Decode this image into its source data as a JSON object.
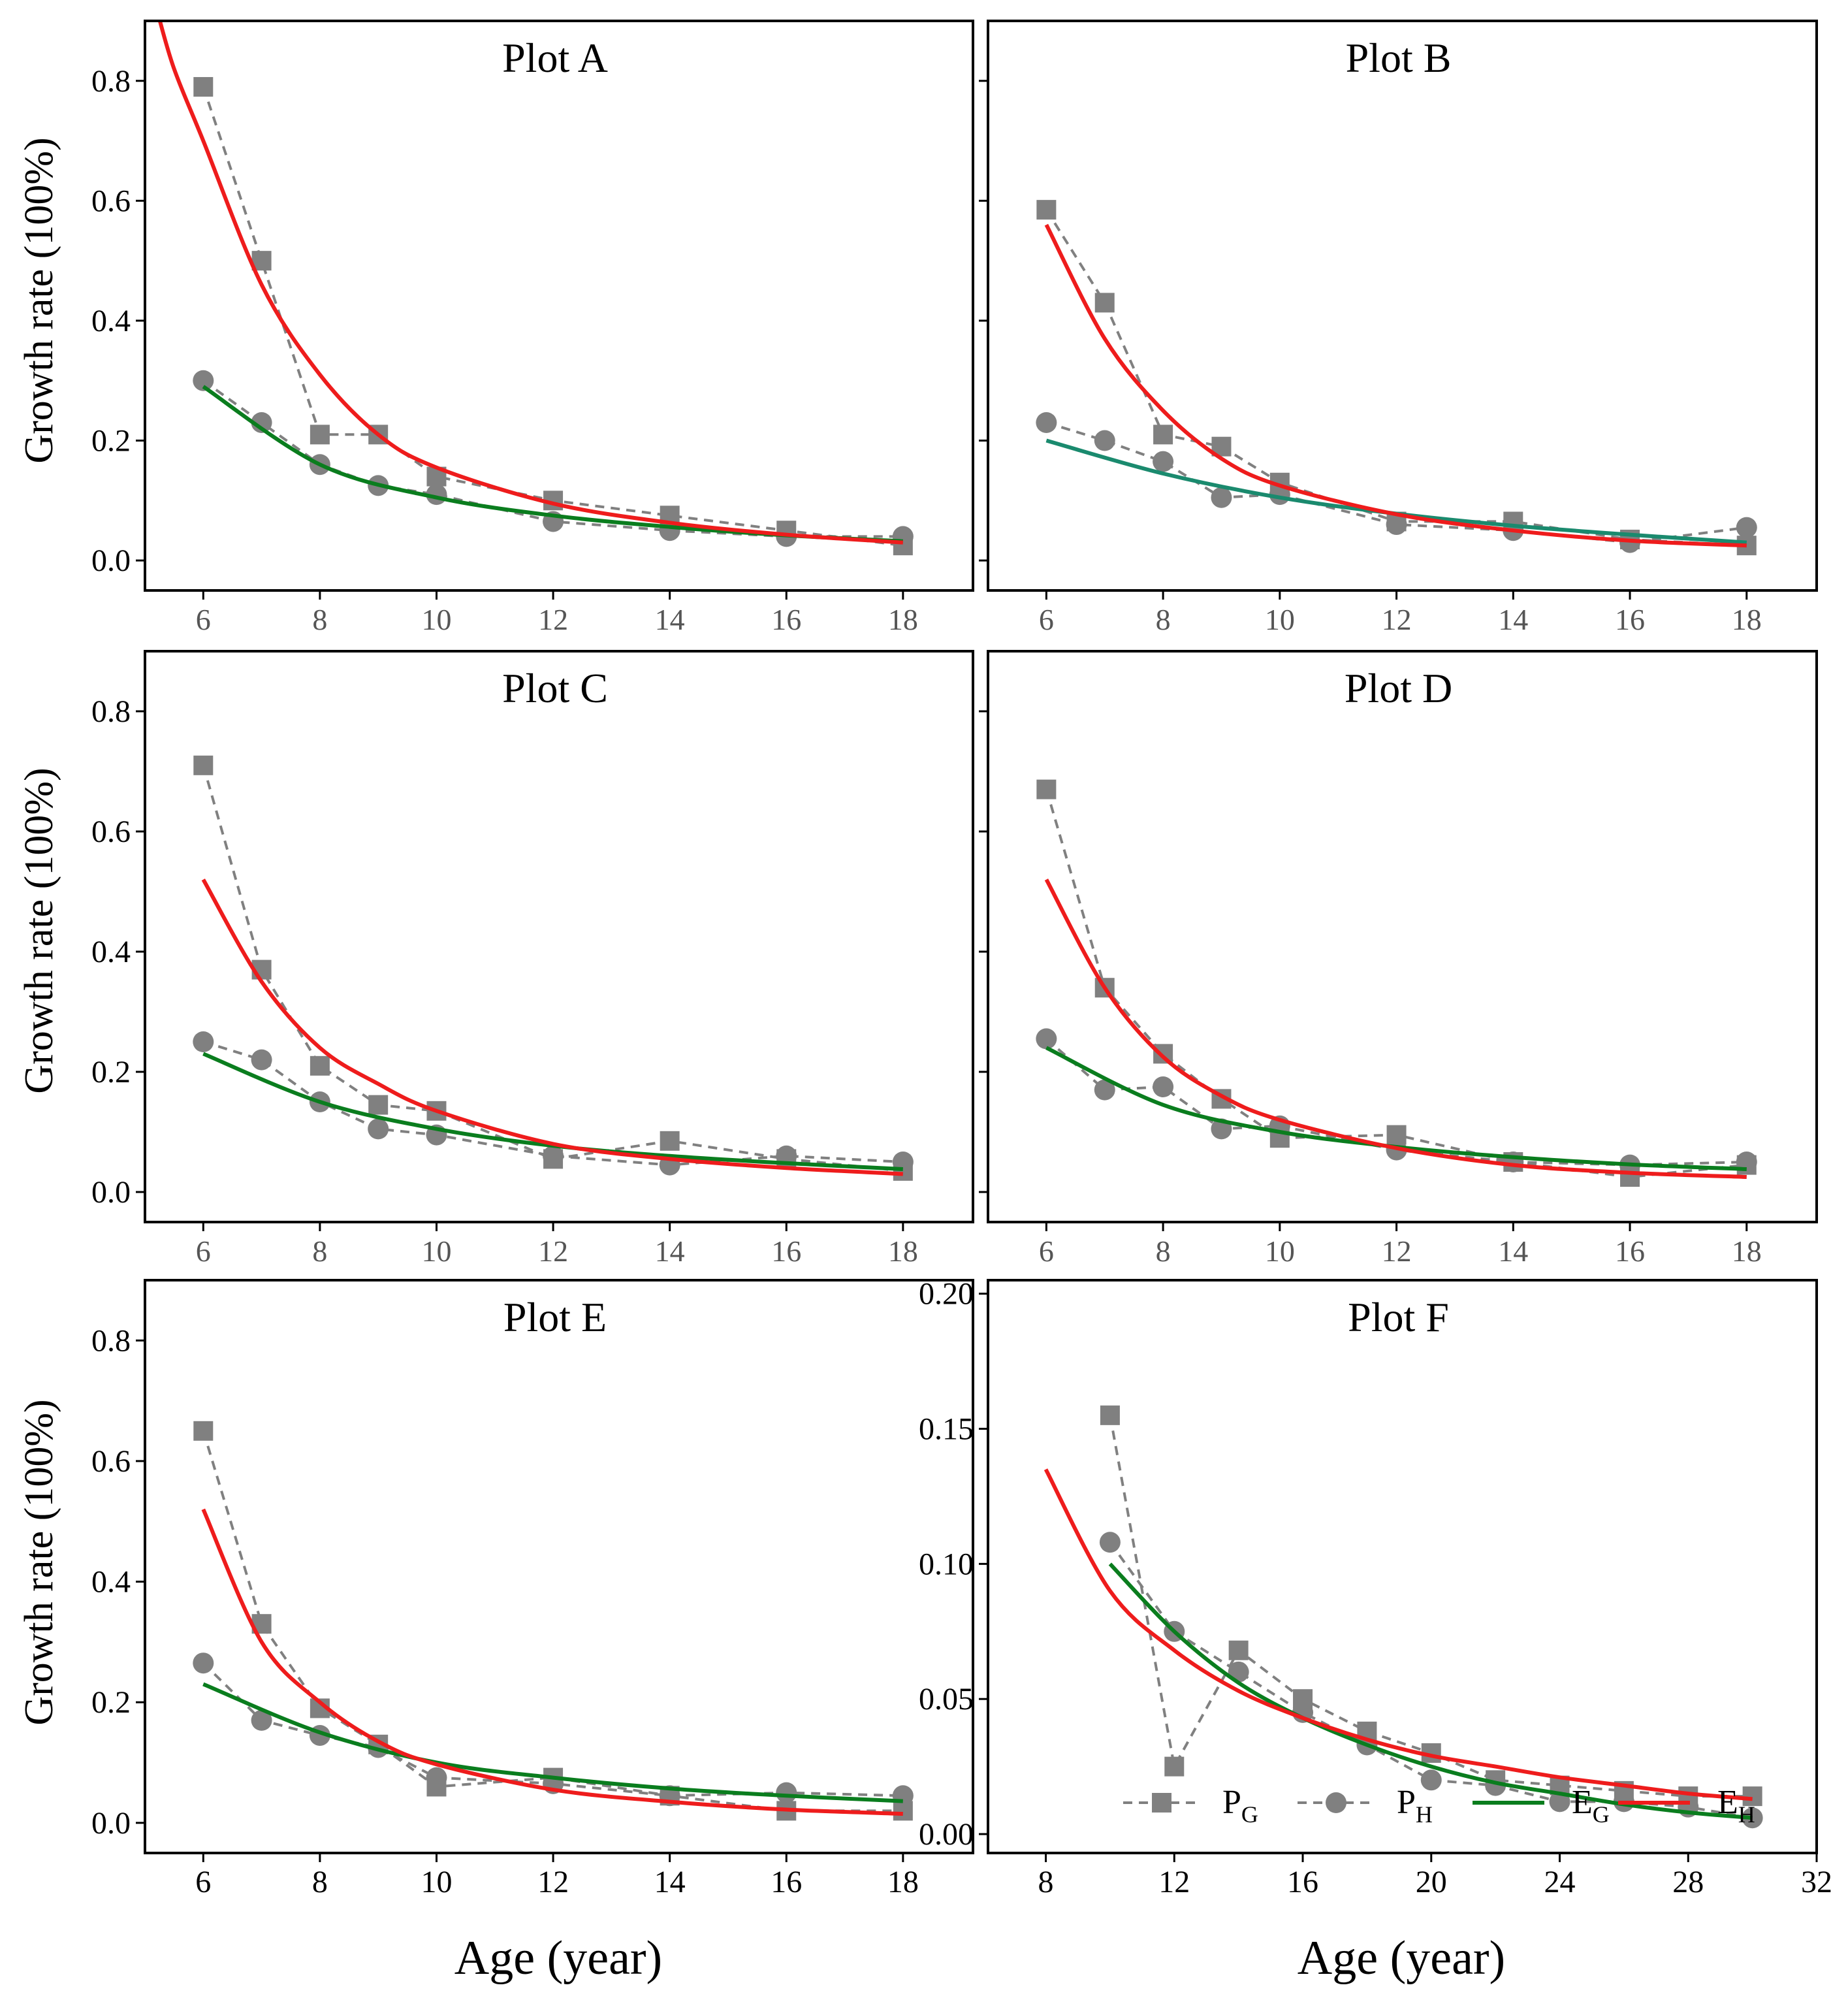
{
  "figure": {
    "ylabel": "Growth rate (100%)",
    "xlabel": "Age (year)",
    "legend": {
      "position": "bottom-right of Plot F",
      "items": [
        {
          "key": "PG",
          "base": "P",
          "sub": "G",
          "style": "gray dashed, square markers"
        },
        {
          "key": "PH",
          "base": "P",
          "sub": "H",
          "style": "gray dashed, circle markers"
        },
        {
          "key": "EG",
          "base": "E",
          "sub": "G",
          "style": "green solid"
        },
        {
          "key": "EH",
          "base": "E",
          "sub": "H",
          "style": "red solid"
        }
      ]
    },
    "colors": {
      "PG": "#808080",
      "PH": "#808080",
      "EG": "#0a7d1e",
      "EH": "#ee1c1c",
      "EG_plotB": "#1a8a6e"
    }
  },
  "chart_data": [
    {
      "type": "line",
      "title": "Plot A",
      "xlim": [
        5,
        19.2
      ],
      "ylim": [
        -0.05,
        0.9
      ],
      "xticks": [
        6,
        8,
        10,
        12,
        14,
        16,
        18
      ],
      "xtick_labels": [
        "6",
        "8",
        "10",
        "12",
        "14",
        "16",
        "18"
      ],
      "yticks": [
        0,
        0.2,
        0.4,
        0.6,
        0.8
      ],
      "ytick_labels": [
        "0.0",
        "0.2",
        "0.4",
        "0.6",
        "0.8"
      ],
      "series": [
        {
          "name": "PG",
          "x": [
            6,
            7,
            8,
            9,
            10,
            12,
            14,
            16,
            18
          ],
          "values": [
            0.79,
            0.5,
            0.21,
            0.21,
            0.14,
            0.1,
            0.075,
            0.05,
            0.025
          ]
        },
        {
          "name": "PH",
          "x": [
            6,
            7,
            8,
            9,
            10,
            12,
            14,
            16,
            18
          ],
          "values": [
            0.3,
            0.23,
            0.16,
            0.125,
            0.11,
            0.065,
            0.05,
            0.04,
            0.04
          ]
        },
        {
          "name": "EG",
          "x": [
            6,
            8,
            10,
            12,
            14,
            16,
            18
          ],
          "values": [
            0.29,
            0.16,
            0.105,
            0.075,
            0.056,
            0.042,
            0.032
          ]
        },
        {
          "name": "EH",
          "x": [
            5.2,
            5.5,
            6,
            7,
            8,
            9,
            10,
            12,
            14,
            16,
            18
          ],
          "values": [
            0.92,
            0.82,
            0.7,
            0.46,
            0.31,
            0.21,
            0.155,
            0.095,
            0.063,
            0.043,
            0.03
          ]
        }
      ]
    },
    {
      "type": "line",
      "title": "Plot B",
      "xlim": [
        5,
        19.2
      ],
      "ylim": [
        -0.05,
        0.9
      ],
      "xticks": [
        6,
        8,
        10,
        12,
        14,
        16,
        18
      ],
      "xtick_labels": [
        "6",
        "8",
        "10",
        "12",
        "14",
        "16",
        "18"
      ],
      "yticks": [
        0,
        0.2,
        0.4,
        0.6,
        0.8
      ],
      "ytick_labels": [
        "",
        "",
        "",
        "",
        ""
      ],
      "series": [
        {
          "name": "PG",
          "x": [
            6,
            7,
            8,
            9,
            10,
            12,
            14,
            16,
            18
          ],
          "values": [
            0.585,
            0.43,
            0.21,
            0.19,
            0.13,
            0.065,
            0.065,
            0.035,
            0.025
          ]
        },
        {
          "name": "PH",
          "x": [
            6,
            7,
            8,
            9,
            10,
            12,
            14,
            16,
            18
          ],
          "values": [
            0.23,
            0.2,
            0.165,
            0.105,
            0.11,
            0.06,
            0.05,
            0.03,
            0.055
          ]
        },
        {
          "name": "EG",
          "x": [
            6,
            8,
            10,
            12,
            14,
            16,
            18
          ],
          "values": [
            0.2,
            0.145,
            0.105,
            0.078,
            0.058,
            0.043,
            0.03
          ]
        },
        {
          "name": "EH",
          "x": [
            6,
            7,
            8,
            9,
            10,
            12,
            14,
            16,
            18
          ],
          "values": [
            0.56,
            0.37,
            0.25,
            0.17,
            0.125,
            0.077,
            0.05,
            0.033,
            0.025
          ]
        }
      ]
    },
    {
      "type": "line",
      "title": "Plot C",
      "xlim": [
        5,
        19.2
      ],
      "ylim": [
        -0.05,
        0.9
      ],
      "xticks": [
        6,
        8,
        10,
        12,
        14,
        16,
        18
      ],
      "xtick_labels": [
        "6",
        "8",
        "10",
        "12",
        "14",
        "16",
        "18"
      ],
      "yticks": [
        0,
        0.2,
        0.4,
        0.6,
        0.8
      ],
      "ytick_labels": [
        "0.0",
        "0.2",
        "0.4",
        "0.6",
        "0.8"
      ],
      "series": [
        {
          "name": "PG",
          "x": [
            6,
            7,
            8,
            9,
            10,
            12,
            14,
            16,
            18
          ],
          "values": [
            0.71,
            0.37,
            0.21,
            0.145,
            0.135,
            0.055,
            0.085,
            0.055,
            0.035
          ]
        },
        {
          "name": "PH",
          "x": [
            6,
            7,
            8,
            9,
            10,
            12,
            14,
            16,
            18
          ],
          "values": [
            0.25,
            0.22,
            0.15,
            0.105,
            0.095,
            0.06,
            0.045,
            0.06,
            0.05
          ]
        },
        {
          "name": "EG",
          "x": [
            6,
            8,
            10,
            12,
            14,
            16,
            18
          ],
          "values": [
            0.23,
            0.15,
            0.105,
            0.077,
            0.06,
            0.048,
            0.038
          ]
        },
        {
          "name": "EH",
          "x": [
            6,
            7,
            8,
            9,
            10,
            12,
            14,
            16,
            18
          ],
          "values": [
            0.52,
            0.35,
            0.24,
            0.18,
            0.135,
            0.08,
            0.055,
            0.04,
            0.03
          ]
        }
      ]
    },
    {
      "type": "line",
      "title": "Plot D",
      "xlim": [
        5,
        19.2
      ],
      "ylim": [
        -0.05,
        0.9
      ],
      "xticks": [
        6,
        8,
        10,
        12,
        14,
        16,
        18
      ],
      "xtick_labels": [
        "6",
        "8",
        "10",
        "12",
        "14",
        "16",
        "18"
      ],
      "yticks": [
        0,
        0.2,
        0.4,
        0.6,
        0.8
      ],
      "ytick_labels": [
        "",
        "",
        "",
        "",
        ""
      ],
      "series": [
        {
          "name": "PG",
          "x": [
            6,
            7,
            8,
            9,
            10,
            12,
            14,
            16,
            18
          ],
          "values": [
            0.67,
            0.34,
            0.23,
            0.155,
            0.09,
            0.095,
            0.05,
            0.025,
            0.045
          ]
        },
        {
          "name": "PH",
          "x": [
            6,
            7,
            8,
            9,
            10,
            12,
            14,
            16,
            18
          ],
          "values": [
            0.255,
            0.17,
            0.175,
            0.105,
            0.11,
            0.07,
            0.05,
            0.045,
            0.05
          ]
        },
        {
          "name": "EG",
          "x": [
            6,
            8,
            10,
            12,
            14,
            16,
            18
          ],
          "values": [
            0.24,
            0.145,
            0.1,
            0.075,
            0.058,
            0.046,
            0.038
          ]
        },
        {
          "name": "EH",
          "x": [
            6,
            7,
            8,
            9,
            10,
            12,
            14,
            16,
            18
          ],
          "values": [
            0.52,
            0.34,
            0.225,
            0.16,
            0.12,
            0.073,
            0.045,
            0.032,
            0.025
          ]
        }
      ]
    },
    {
      "type": "line",
      "title": "Plot E",
      "xlim": [
        5,
        19.2
      ],
      "ylim": [
        -0.05,
        0.9
      ],
      "xticks": [
        6,
        8,
        10,
        12,
        14,
        16,
        18
      ],
      "xtick_labels": [
        "6",
        "8",
        "10",
        "12",
        "14",
        "16",
        "18"
      ],
      "yticks": [
        0,
        0.2,
        0.4,
        0.6,
        0.8
      ],
      "ytick_labels": [
        "0.0",
        "0.2",
        "0.4",
        "0.6",
        "0.8"
      ],
      "series": [
        {
          "name": "PG",
          "x": [
            6,
            7,
            8,
            9,
            10,
            12,
            14,
            16,
            18
          ],
          "values": [
            0.65,
            0.33,
            0.19,
            0.13,
            0.06,
            0.075,
            0.045,
            0.02,
            0.02
          ]
        },
        {
          "name": "PH",
          "x": [
            6,
            7,
            8,
            9,
            10,
            12,
            14,
            16,
            18
          ],
          "values": [
            0.265,
            0.17,
            0.145,
            0.125,
            0.075,
            0.065,
            0.045,
            0.05,
            0.045
          ]
        },
        {
          "name": "EG",
          "x": [
            6,
            8,
            10,
            12,
            14,
            16,
            18
          ],
          "values": [
            0.23,
            0.15,
            0.1,
            0.075,
            0.057,
            0.045,
            0.036
          ]
        },
        {
          "name": "EH",
          "x": [
            6,
            7,
            8,
            9,
            10,
            12,
            14,
            16,
            18
          ],
          "values": [
            0.52,
            0.3,
            0.2,
            0.135,
            0.097,
            0.055,
            0.035,
            0.022,
            0.015
          ]
        }
      ]
    },
    {
      "type": "line",
      "title": "Plot F",
      "xlim": [
        6.2,
        32
      ],
      "ylim": [
        -0.007,
        0.205
      ],
      "xticks": [
        8,
        12,
        16,
        20,
        24,
        28,
        32
      ],
      "xtick_labels": [
        "8",
        "12",
        "16",
        "20",
        "24",
        "28",
        "32"
      ],
      "yticks": [
        0,
        0.05,
        0.1,
        0.15,
        0.2
      ],
      "ytick_labels": [
        "0.00",
        "0.05",
        "0.10",
        "0.15",
        "0.20"
      ],
      "series": [
        {
          "name": "PG",
          "x": [
            10,
            12,
            14,
            16,
            18,
            20,
            22,
            24,
            26,
            28,
            30
          ],
          "values": [
            0.155,
            0.025,
            0.068,
            0.05,
            0.038,
            0.03,
            0.02,
            0.018,
            0.016,
            0.014,
            0.014
          ]
        },
        {
          "name": "PH",
          "x": [
            10,
            12,
            14,
            16,
            18,
            20,
            22,
            24,
            26,
            28,
            30
          ],
          "values": [
            0.108,
            0.075,
            0.06,
            0.045,
            0.033,
            0.02,
            0.018,
            0.012,
            0.012,
            0.01,
            0.006
          ]
        },
        {
          "name": "EG",
          "x": [
            10,
            12,
            14,
            16,
            18,
            20,
            22,
            24,
            26,
            28,
            30
          ],
          "values": [
            0.1,
            0.075,
            0.056,
            0.043,
            0.033,
            0.025,
            0.019,
            0.015,
            0.011,
            0.008,
            0.006
          ]
        },
        {
          "name": "EH",
          "x": [
            8,
            10,
            12,
            14,
            16,
            18,
            20,
            22,
            24,
            26,
            28,
            30
          ],
          "values": [
            0.135,
            0.09,
            0.068,
            0.053,
            0.043,
            0.035,
            0.029,
            0.025,
            0.021,
            0.018,
            0.015,
            0.013
          ]
        }
      ]
    }
  ]
}
